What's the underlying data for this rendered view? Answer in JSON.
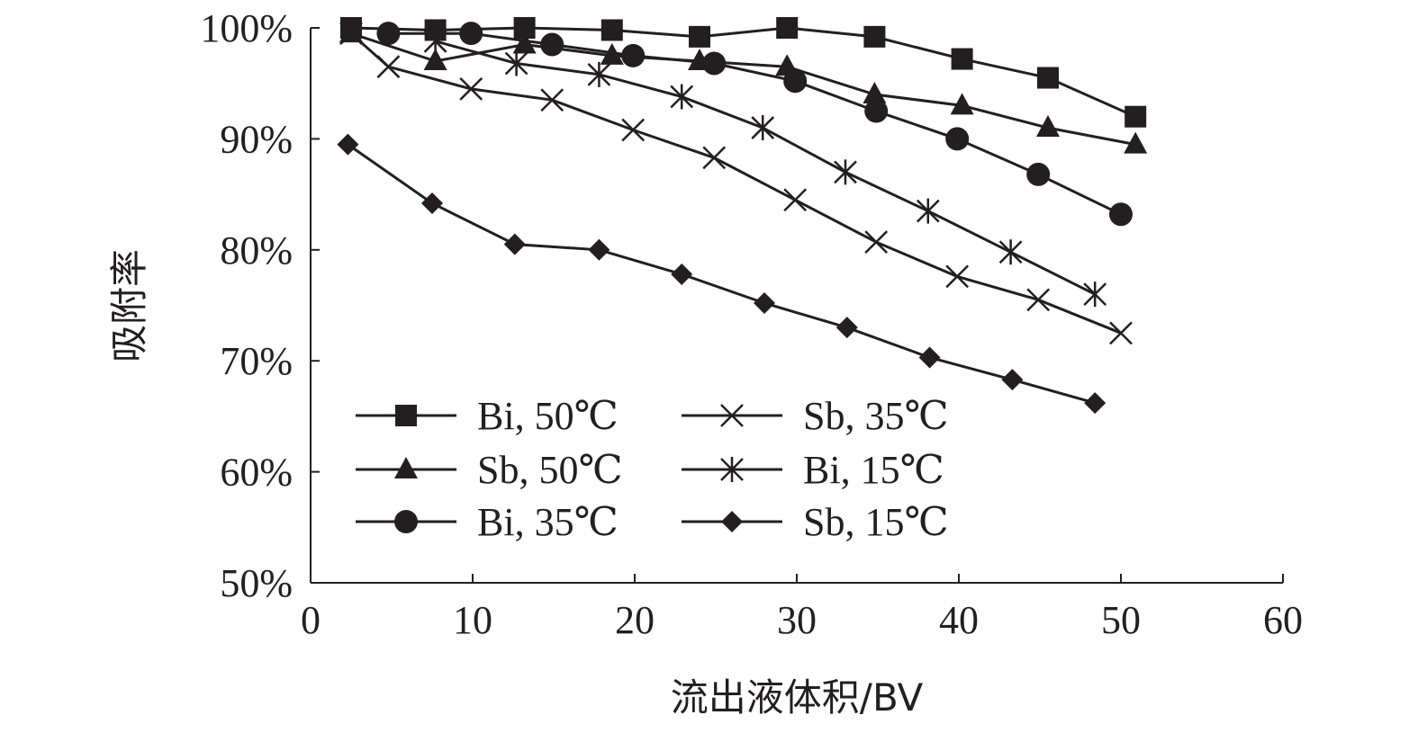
{
  "chart_data": {
    "type": "line",
    "title": "",
    "xlabel": "流出液体积/BV",
    "ylabel": "吸附率",
    "xlim": [
      0,
      60
    ],
    "ylim": [
      50,
      100
    ],
    "x_ticks": [
      "0",
      "10",
      "20",
      "30",
      "40",
      "50",
      "60"
    ],
    "y_ticks": [
      "50%",
      "60%",
      "70%",
      "80%",
      "90%",
      "100%"
    ],
    "grid": false,
    "legend_position": "lower-left",
    "series": [
      {
        "name": "Bi, 50℃",
        "marker": "square",
        "color": "#231f20",
        "x": [
          2.5,
          7.7,
          13.2,
          18.6,
          24.0,
          29.4,
          34.8,
          40.2,
          45.5,
          50.9
        ],
        "y": [
          100,
          99.8,
          100,
          99.8,
          99.2,
          100,
          99.2,
          97.2,
          95.5,
          92
        ]
      },
      {
        "name": "Sb, 50℃",
        "marker": "triangle",
        "color": "#231f20",
        "x": [
          2.5,
          7.7,
          13.2,
          18.6,
          24.0,
          29.4,
          34.8,
          40.2,
          45.5,
          50.9
        ],
        "y": [
          99.5,
          97,
          98.5,
          97.5,
          97,
          96.5,
          94,
          93,
          91,
          89.5
        ]
      },
      {
        "name": "Bi, 35℃",
        "marker": "circle",
        "color": "#231f20",
        "x": [
          4.8,
          9.9,
          14.9,
          19.9,
          24.9,
          29.9,
          34.9,
          39.9,
          44.9,
          50.0
        ],
        "y": [
          99.5,
          99.5,
          98.5,
          97.5,
          96.8,
          95.2,
          92.5,
          90,
          86.8,
          83.2
        ]
      },
      {
        "name": "Sb, 35℃",
        "marker": "x",
        "color": "#231f20",
        "x": [
          2.5,
          4.8,
          9.9,
          14.9,
          19.9,
          24.9,
          29.9,
          34.9,
          39.9,
          44.9,
          50.0
        ],
        "y": [
          99.5,
          96.5,
          94.5,
          93.5,
          90.8,
          88.3,
          84.5,
          80.7,
          77.6,
          75.5,
          72.5
        ]
      },
      {
        "name": "Bi, 15℃",
        "marker": "asterisk",
        "color": "#231f20",
        "x": [
          7.7,
          12.7,
          17.8,
          22.9,
          27.9,
          33.0,
          38.1,
          43.2,
          48.4
        ],
        "y": [
          98.8,
          96.8,
          95.8,
          93.8,
          91,
          87,
          83.5,
          79.8,
          76
        ]
      },
      {
        "name": "Sb, 15℃",
        "marker": "diamond",
        "color": "#231f20",
        "x": [
          2.3,
          7.5,
          12.6,
          17.8,
          22.9,
          28.0,
          33.1,
          38.2,
          43.3,
          48.4
        ],
        "y": [
          89.5,
          84.2,
          80.5,
          80,
          77.8,
          75.2,
          73,
          70.3,
          68.3,
          66.2
        ]
      }
    ]
  }
}
